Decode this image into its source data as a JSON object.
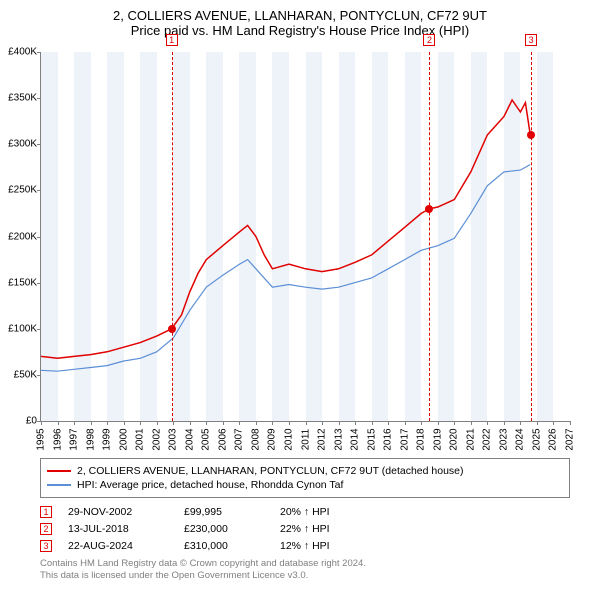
{
  "title": {
    "main": "2, COLLIERS AVENUE, LLANHARAN, PONTYCLUN, CF72 9UT",
    "sub": "Price paid vs. HM Land Registry's House Price Index (HPI)"
  },
  "chart": {
    "type": "line",
    "background_color": "#ffffff",
    "axis_color": "#808080",
    "ylim": [
      0,
      400000
    ],
    "ytick_step": 50000,
    "ytick_labels": [
      "£0",
      "£50K",
      "£100K",
      "£150K",
      "£200K",
      "£250K",
      "£300K",
      "£350K",
      "£400K"
    ],
    "xlim": [
      1995,
      2027
    ],
    "xtick_step": 1,
    "xtick_labels": [
      "1995",
      "1996",
      "1997",
      "1998",
      "1999",
      "2000",
      "2001",
      "2002",
      "2003",
      "2004",
      "2005",
      "2006",
      "2007",
      "2008",
      "2009",
      "2010",
      "2011",
      "2012",
      "2013",
      "2014",
      "2015",
      "2016",
      "2017",
      "2018",
      "2019",
      "2020",
      "2021",
      "2022",
      "2023",
      "2024",
      "2025",
      "2026",
      "2027"
    ],
    "vbands": [
      [
        1995,
        1996
      ],
      [
        1997,
        1998
      ],
      [
        1999,
        2000
      ],
      [
        2001,
        2002
      ],
      [
        2003,
        2004
      ],
      [
        2005,
        2006
      ],
      [
        2007,
        2008
      ],
      [
        2009,
        2010
      ],
      [
        2011,
        2012
      ],
      [
        2013,
        2014
      ],
      [
        2015,
        2016
      ],
      [
        2017,
        2018
      ],
      [
        2019,
        2020
      ],
      [
        2021,
        2022
      ],
      [
        2023,
        2024
      ],
      [
        2025,
        2026
      ]
    ],
    "vband_color": "#eef2f9",
    "series": [
      {
        "name": "property",
        "label": "2, COLLIERS AVENUE, LLANHARAN, PONTYCLUN, CF72 9UT (detached house)",
        "color": "#e00000",
        "line_width": 1.5,
        "data": [
          [
            1995,
            70000
          ],
          [
            1996,
            68000
          ],
          [
            1997,
            70000
          ],
          [
            1998,
            72000
          ],
          [
            1999,
            75000
          ],
          [
            2000,
            80000
          ],
          [
            2001,
            85000
          ],
          [
            2002,
            92000
          ],
          [
            2002.9,
            99995
          ],
          [
            2003.5,
            115000
          ],
          [
            2004,
            140000
          ],
          [
            2004.5,
            160000
          ],
          [
            2005,
            175000
          ],
          [
            2006,
            190000
          ],
          [
            2007,
            205000
          ],
          [
            2007.5,
            212000
          ],
          [
            2008,
            200000
          ],
          [
            2008.5,
            180000
          ],
          [
            2009,
            165000
          ],
          [
            2010,
            170000
          ],
          [
            2011,
            165000
          ],
          [
            2012,
            162000
          ],
          [
            2013,
            165000
          ],
          [
            2014,
            172000
          ],
          [
            2015,
            180000
          ],
          [
            2016,
            195000
          ],
          [
            2017,
            210000
          ],
          [
            2018,
            225000
          ],
          [
            2018.5,
            230000
          ],
          [
            2019,
            232000
          ],
          [
            2020,
            240000
          ],
          [
            2021,
            270000
          ],
          [
            2022,
            310000
          ],
          [
            2023,
            330000
          ],
          [
            2023.5,
            348000
          ],
          [
            2024,
            335000
          ],
          [
            2024.3,
            345000
          ],
          [
            2024.6,
            310000
          ]
        ]
      },
      {
        "name": "hpi",
        "label": "HPI: Average price, detached house, Rhondda Cynon Taf",
        "color": "#5b8fd6",
        "line_width": 1.2,
        "data": [
          [
            1995,
            55000
          ],
          [
            1996,
            54000
          ],
          [
            1997,
            56000
          ],
          [
            1998,
            58000
          ],
          [
            1999,
            60000
          ],
          [
            2000,
            65000
          ],
          [
            2001,
            68000
          ],
          [
            2002,
            75000
          ],
          [
            2003,
            90000
          ],
          [
            2004,
            120000
          ],
          [
            2005,
            145000
          ],
          [
            2006,
            158000
          ],
          [
            2007,
            170000
          ],
          [
            2007.5,
            175000
          ],
          [
            2008,
            165000
          ],
          [
            2009,
            145000
          ],
          [
            2010,
            148000
          ],
          [
            2011,
            145000
          ],
          [
            2012,
            143000
          ],
          [
            2013,
            145000
          ],
          [
            2014,
            150000
          ],
          [
            2015,
            155000
          ],
          [
            2016,
            165000
          ],
          [
            2017,
            175000
          ],
          [
            2018,
            185000
          ],
          [
            2019,
            190000
          ],
          [
            2020,
            198000
          ],
          [
            2021,
            225000
          ],
          [
            2022,
            255000
          ],
          [
            2023,
            270000
          ],
          [
            2024,
            272000
          ],
          [
            2024.6,
            278000
          ]
        ]
      }
    ],
    "markers": [
      {
        "idx": "1",
        "x": 2002.9,
        "y": 99995
      },
      {
        "idx": "2",
        "x": 2018.5,
        "y": 230000
      },
      {
        "idx": "3",
        "x": 2024.65,
        "y": 310000
      }
    ]
  },
  "legend": {
    "border_color": "#808080"
  },
  "sales": [
    {
      "idx": "1",
      "date": "29-NOV-2002",
      "price": "£99,995",
      "pct": "20% ↑ HPI"
    },
    {
      "idx": "2",
      "date": "13-JUL-2018",
      "price": "£230,000",
      "pct": "22% ↑ HPI"
    },
    {
      "idx": "3",
      "date": "22-AUG-2024",
      "price": "£310,000",
      "pct": "12% ↑ HPI"
    }
  ],
  "footer": {
    "line1": "Contains HM Land Registry data © Crown copyright and database right 2024.",
    "line2": "This data is licensed under the Open Government Licence v3.0."
  }
}
